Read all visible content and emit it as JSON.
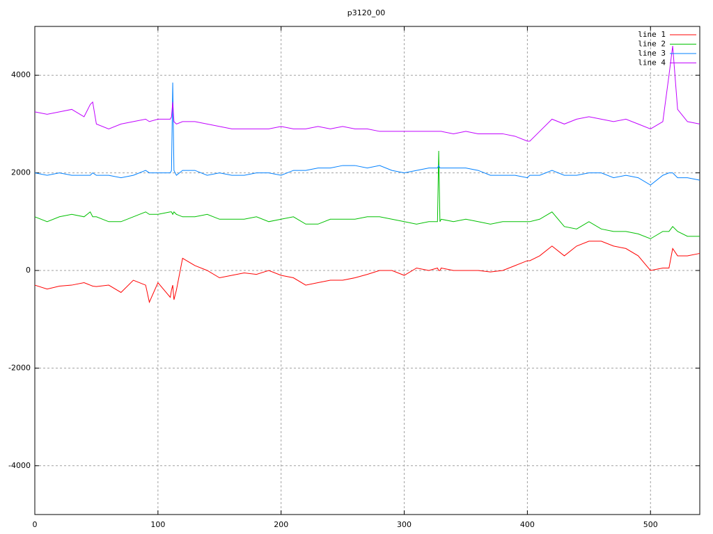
{
  "chart_data": {
    "type": "line",
    "title": "p3120_00",
    "x": [
      0,
      10,
      20,
      30,
      40,
      45,
      47,
      50,
      60,
      70,
      80,
      90,
      93,
      100,
      110,
      111,
      112,
      113,
      115,
      120,
      130,
      140,
      150,
      160,
      170,
      180,
      190,
      200,
      210,
      220,
      230,
      240,
      250,
      260,
      270,
      280,
      290,
      300,
      310,
      320,
      327,
      328,
      329,
      330,
      340,
      350,
      360,
      370,
      380,
      390,
      400,
      402,
      410,
      420,
      430,
      440,
      450,
      460,
      470,
      480,
      490,
      500,
      510,
      515,
      518,
      522,
      530,
      540
    ],
    "series": [
      {
        "name": "line 1",
        "color": "#ff0000",
        "values": [
          -300,
          -380,
          -320,
          -300,
          -250,
          -300,
          -320,
          -330,
          -300,
          -450,
          -200,
          -300,
          -650,
          -250,
          -550,
          -400,
          -300,
          -600,
          -400,
          250,
          100,
          0,
          -150,
          -100,
          -50,
          -80,
          0,
          -100,
          -150,
          -300,
          -250,
          -200,
          -200,
          -150,
          -80,
          0,
          0,
          -100,
          50,
          0,
          50,
          0,
          0,
          50,
          0,
          0,
          0,
          -30,
          0,
          100,
          200,
          200,
          300,
          500,
          300,
          500,
          600,
          600,
          500,
          450,
          300,
          0,
          50,
          50,
          450,
          300,
          300,
          350
        ]
      },
      {
        "name": "line 2",
        "color": "#00c000",
        "values": [
          1100,
          1000,
          1100,
          1150,
          1100,
          1200,
          1100,
          1100,
          1000,
          1000,
          1100,
          1200,
          1150,
          1150,
          1200,
          1200,
          1150,
          1200,
          1150,
          1100,
          1100,
          1150,
          1050,
          1050,
          1050,
          1100,
          1000,
          1050,
          1100,
          950,
          950,
          1050,
          1050,
          1050,
          1100,
          1100,
          1050,
          1000,
          950,
          1000,
          1000,
          2450,
          1000,
          1050,
          1000,
          1050,
          1000,
          950,
          1000,
          1000,
          1000,
          1000,
          1050,
          1200,
          900,
          850,
          1000,
          850,
          800,
          800,
          750,
          650,
          800,
          800,
          900,
          800,
          700,
          700
        ]
      },
      {
        "name": "line 3",
        "color": "#0080ff",
        "values": [
          2000,
          1950,
          2000,
          1950,
          1950,
          1950,
          2000,
          1950,
          1950,
          1900,
          1950,
          2050,
          2000,
          2000,
          2000,
          2050,
          3850,
          2050,
          1950,
          2050,
          2050,
          1950,
          2000,
          1950,
          1950,
          2000,
          2000,
          1950,
          2050,
          2050,
          2100,
          2100,
          2150,
          2150,
          2100,
          2150,
          2050,
          2000,
          2050,
          2100,
          2100,
          2150,
          2100,
          2100,
          2100,
          2100,
          2050,
          1950,
          1950,
          1950,
          1900,
          1950,
          1950,
          2050,
          1950,
          1950,
          2000,
          2000,
          1900,
          1950,
          1900,
          1750,
          1950,
          2000,
          2000,
          1900,
          1900,
          1850
        ]
      },
      {
        "name": "line 4",
        "color": "#c000ff",
        "values": [
          3250,
          3200,
          3250,
          3300,
          3150,
          3400,
          3450,
          3000,
          2900,
          3000,
          3050,
          3100,
          3050,
          3100,
          3100,
          3150,
          3450,
          3050,
          3000,
          3050,
          3050,
          3000,
          2950,
          2900,
          2900,
          2900,
          2900,
          2950,
          2900,
          2900,
          2950,
          2900,
          2950,
          2900,
          2900,
          2850,
          2850,
          2850,
          2850,
          2850,
          2850,
          2850,
          2850,
          2850,
          2800,
          2850,
          2800,
          2800,
          2800,
          2750,
          2650,
          2650,
          2850,
          3100,
          3000,
          3100,
          3150,
          3100,
          3050,
          3100,
          3000,
          2900,
          3050,
          4000,
          4600,
          3300,
          3050,
          3000
        ]
      }
    ],
    "xlim": [
      0,
      540
    ],
    "ylim": [
      -5000,
      5000
    ],
    "xticks": [
      0,
      100,
      200,
      300,
      400,
      500
    ],
    "yticks": [
      -4000,
      -2000,
      0,
      2000,
      4000
    ],
    "grid": true,
    "legend": "top-right"
  }
}
